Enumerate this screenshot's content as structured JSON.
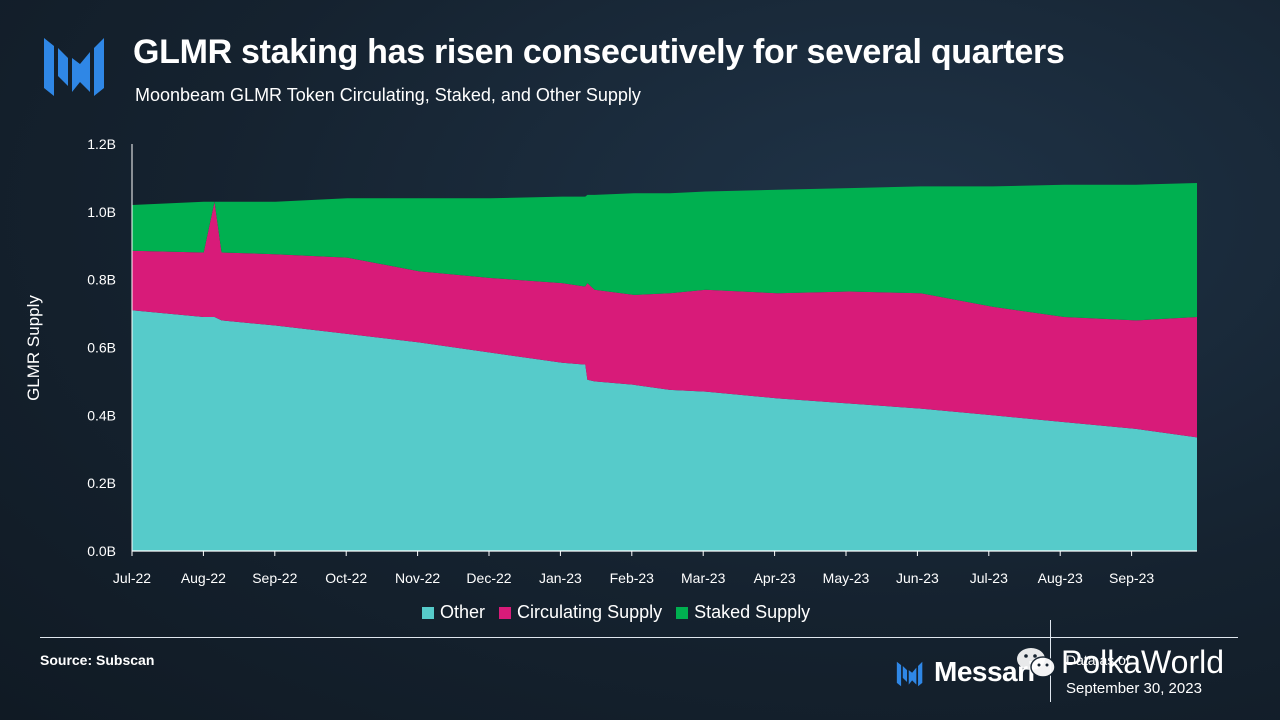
{
  "header": {
    "title": "GLMR staking has risen consecutively for several quarters",
    "subtitle": "Moonbeam GLMR Token Circulating, Staked, and Other Supply"
  },
  "footer": {
    "source": "Source: Subscan",
    "brand": "Messari",
    "date_label": "Data as of",
    "date_value": "September 30, 2023",
    "watermark": "PolkaWorld"
  },
  "legend": {
    "other": "Other",
    "circulating": "Circulating Supply",
    "staked": "Staked Supply"
  },
  "colors": {
    "other": "#56cbca",
    "circulating": "#d81b79",
    "staked": "#00b050",
    "brand_blue": "#2f87e6"
  },
  "chart_data": {
    "type": "area",
    "stacked": true,
    "title": "GLMR staking has risen consecutively for several quarters",
    "subtitle": "Moonbeam GLMR Token Circulating, Staked, and Other Supply",
    "xlabel": "",
    "ylabel": "GLMR Supply",
    "ylim": [
      0,
      1.2
    ],
    "yunit": "B",
    "yticks": [
      "0.0B",
      "0.2B",
      "0.4B",
      "0.6B",
      "0.8B",
      "1.0B",
      "1.2B"
    ],
    "xticks": [
      "Jul-22",
      "Aug-22",
      "Sep-22",
      "Oct-22",
      "Nov-22",
      "Dec-22",
      "Jan-23",
      "Feb-23",
      "Mar-23",
      "Apr-23",
      "May-23",
      "Jun-23",
      "Jul-23",
      "Aug-23",
      "Sep-23"
    ],
    "legend_position": "bottom",
    "x": [
      0,
      1,
      1.15,
      1.25,
      2,
      3,
      4,
      5,
      6,
      6.3,
      6.32,
      6.35,
      6.45,
      7,
      7.5,
      8,
      9,
      10,
      11,
      12,
      13,
      14,
      14.85
    ],
    "series": [
      {
        "name": "Other",
        "values": [
          0.71,
          0.69,
          0.69,
          0.68,
          0.665,
          0.64,
          0.615,
          0.585,
          0.555,
          0.55,
          0.55,
          0.505,
          0.5,
          0.49,
          0.475,
          0.47,
          0.45,
          0.435,
          0.42,
          0.4,
          0.38,
          0.36,
          0.335
        ]
      },
      {
        "name": "Circulating Supply",
        "values": [
          0.175,
          0.19,
          0.34,
          0.2,
          0.21,
          0.225,
          0.21,
          0.22,
          0.235,
          0.23,
          0.23,
          0.285,
          0.27,
          0.265,
          0.285,
          0.3,
          0.31,
          0.33,
          0.34,
          0.32,
          0.31,
          0.32,
          0.355
        ]
      },
      {
        "name": "Staked Supply",
        "values": [
          0.135,
          0.15,
          0.0,
          0.15,
          0.155,
          0.175,
          0.215,
          0.235,
          0.255,
          0.265,
          0.265,
          0.26,
          0.28,
          0.3,
          0.295,
          0.29,
          0.305,
          0.305,
          0.315,
          0.355,
          0.39,
          0.4,
          0.395
        ]
      }
    ]
  }
}
